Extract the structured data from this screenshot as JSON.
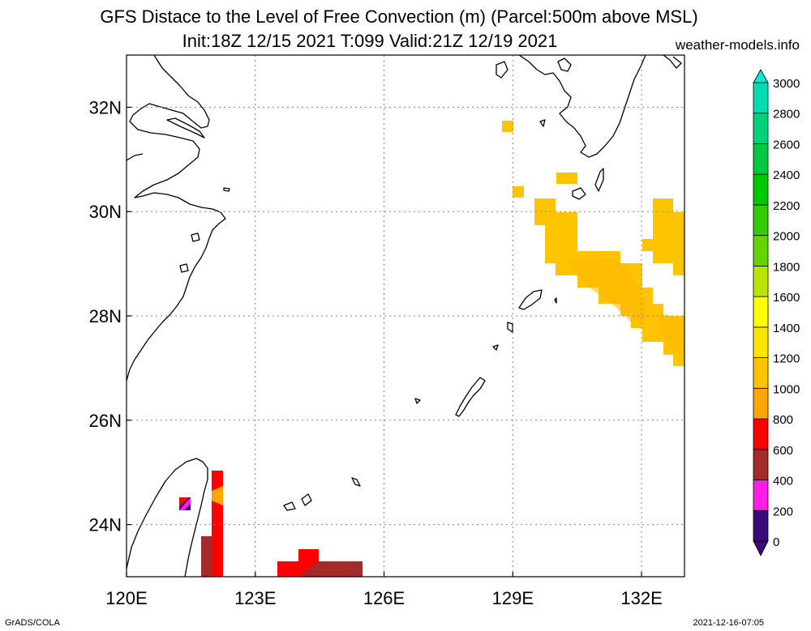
{
  "header": {
    "title_line1": "GFS Distace to the Level of Free Convection (m) (Parcel:500m above MSL)",
    "title_line2": "Init:18Z 12/15 2021 T:099 Valid:21Z 12/19 2021",
    "site": "weather-models.info"
  },
  "footer": {
    "left": "GrADS/COLA",
    "right": "2021-12-16-07:05"
  },
  "map": {
    "lon_range": [
      120,
      133
    ],
    "lat_range": [
      23,
      33
    ],
    "lon_ticks": [
      {
        "value": 120,
        "label": "120E"
      },
      {
        "value": 123,
        "label": "123E"
      },
      {
        "value": 126,
        "label": "126E"
      },
      {
        "value": 129,
        "label": "129E"
      },
      {
        "value": 132,
        "label": "132E"
      }
    ],
    "lat_ticks": [
      {
        "value": 32,
        "label": "32N"
      },
      {
        "value": 30,
        "label": "30N"
      },
      {
        "value": 28,
        "label": "28N"
      },
      {
        "value": 26,
        "label": "26N"
      },
      {
        "value": 24,
        "label": "24N"
      }
    ],
    "grid": true
  },
  "colorbar": {
    "levels": [
      "0",
      "200",
      "400",
      "600",
      "800",
      "1000",
      "1200",
      "1400",
      "1600",
      "1800",
      "2000",
      "2200",
      "2400",
      "2600",
      "2800",
      "3000"
    ],
    "colors": [
      "#3a0b7a",
      "#ff1ee6",
      "#a52a2a",
      "#ff0000",
      "#ffa500",
      "#ffc400",
      "#ffe600",
      "#ffff00",
      "#b8e400",
      "#66d400",
      "#33cc00",
      "#00c800",
      "#00c840",
      "#00d27a",
      "#00dcb0",
      "#00e8d8"
    ],
    "under_color": "#3a0b7a",
    "over_color": "#00e8d8"
  },
  "field_cells": [
    {
      "lon": 129.0,
      "lat": 31.6,
      "color": "#ffc400"
    },
    {
      "lon": 129.1,
      "lat": 30.35,
      "color": "#ffc400"
    },
    {
      "lon": 130.5,
      "lat": 30.6,
      "color": "#ffc400"
    },
    {
      "lon": 129.9,
      "lat": 30.0,
      "color": "#ffc400"
    },
    {
      "lon": 130.4,
      "lat": 29.6,
      "color": "#ffc400"
    },
    {
      "lon": 130.5,
      "lat": 29.2,
      "color": "#ffc400"
    },
    {
      "lon": 131.2,
      "lat": 28.9,
      "color": "#ffc400"
    },
    {
      "lon": 131.5,
      "lat": 28.5,
      "color": "#ffc400"
    },
    {
      "lon": 131.8,
      "lat": 28.15,
      "color": "#ffc400"
    },
    {
      "lon": 132.2,
      "lat": 27.75,
      "color": "#ffc400"
    },
    {
      "lon": 132.55,
      "lat": 27.35,
      "color": "#ffc400"
    },
    {
      "lon": 132.8,
      "lat": 29.55,
      "color": "#ffc400"
    },
    {
      "lon": 132.5,
      "lat": 30.0,
      "color": "#ffc400"
    },
    {
      "lon": 122.1,
      "lat": 24.5,
      "color": "#ff0000"
    },
    {
      "lon": 121.9,
      "lat": 23.4,
      "color": "#a52a2a"
    },
    {
      "lon": 124.0,
      "lat": 23.2,
      "color": "#ff0000"
    },
    {
      "lon": 124.9,
      "lat": 23.2,
      "color": "#a52a2a"
    },
    {
      "lon": 121.45,
      "lat": 24.35,
      "color": "#ff1ee6"
    }
  ]
}
